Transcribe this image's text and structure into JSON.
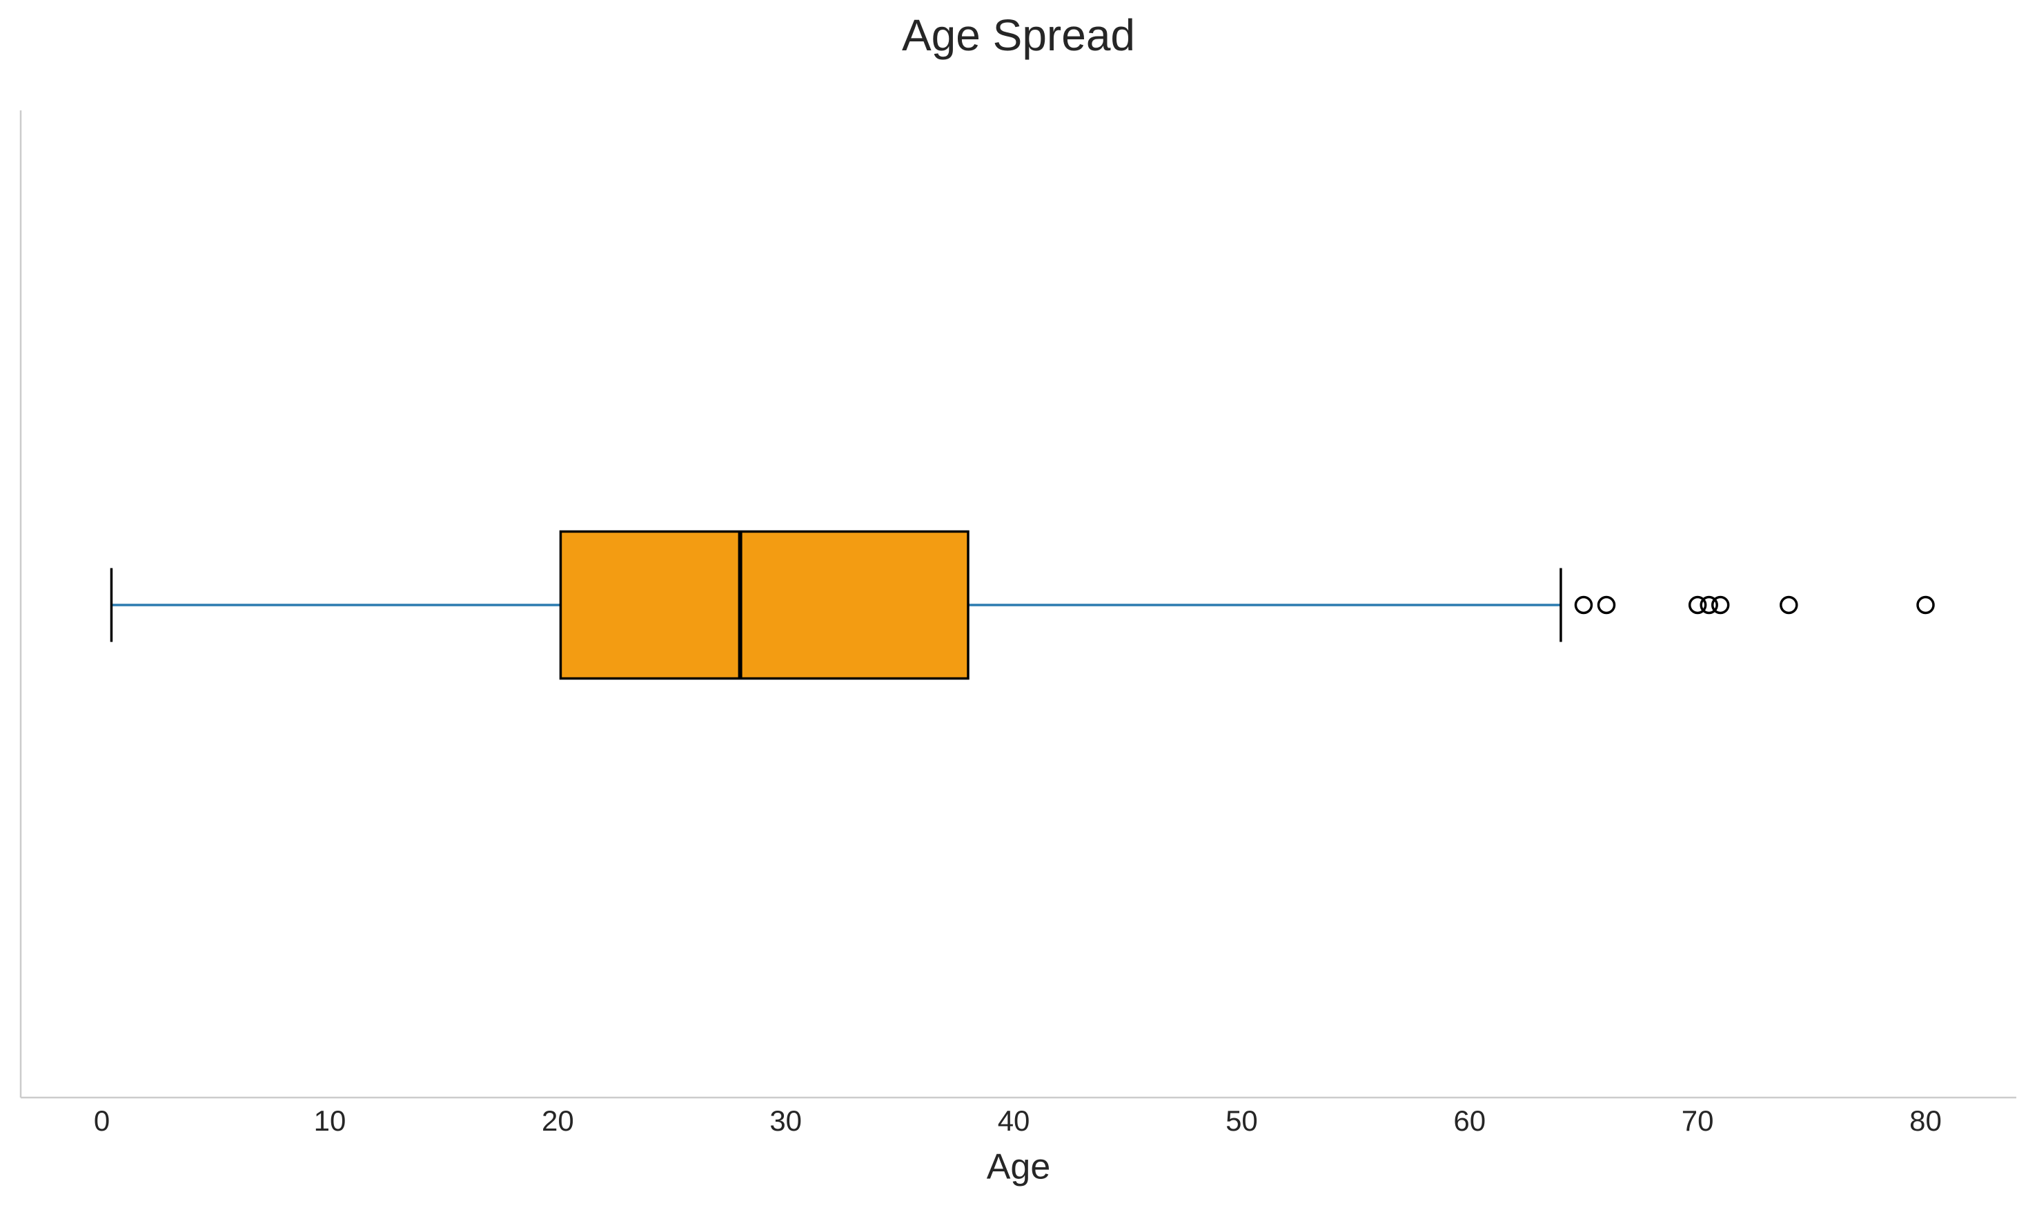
{
  "chart_data": {
    "type": "box",
    "title": "Age Spread",
    "xlabel": "Age",
    "whislo": 0.42,
    "q1": 20.125,
    "med": 28,
    "q3": 38,
    "whishi": 64,
    "fliers": [
      65,
      66,
      70,
      70.5,
      71,
      74,
      80
    ],
    "color": "#f39c12",
    "whisker_color": "#2b7bb0",
    "xlim": [
      -3.56,
      83.98
    ],
    "xticks": [
      0,
      10,
      20,
      30,
      40,
      50,
      60,
      70,
      80
    ],
    "grid": false
  }
}
